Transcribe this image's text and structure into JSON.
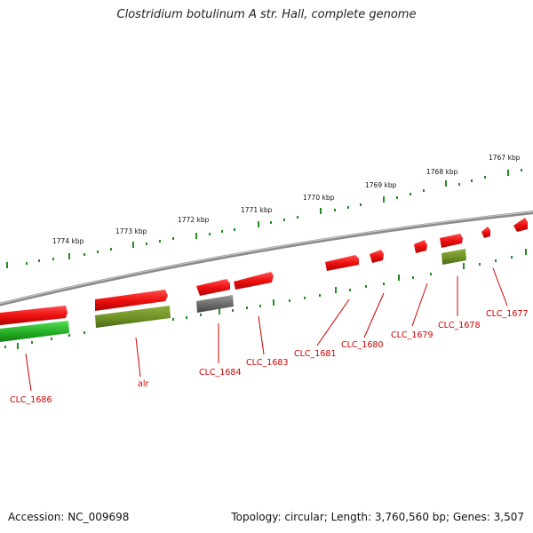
{
  "title": "Clostridium botulinum A str. Hall, complete genome",
  "accession": "Accession: NC_009698",
  "summary": "Topology: circular; Length: 3,760,560 bp; Genes: 3,507",
  "kbp_labels": [
    "1774 kbp",
    "1773 kbp",
    "1772 kbp",
    "1771 kbp",
    "1770 kbp",
    "1769 kbp",
    "1768 kbp",
    "1767 kbp"
  ],
  "gene_labels": [
    "CLC_1686",
    "alr",
    "CLC_1684",
    "CLC_1683",
    "CLC_1681",
    "CLC_1680",
    "CLC_1679",
    "CLC_1678",
    "CLC_1677"
  ],
  "colors": {
    "forward_gene": "#ee1111",
    "cog_olive": "#6b8e23",
    "cog_green": "#22aa22",
    "pseudo_grey": "#666666",
    "backbone": "#8a8a8a",
    "tick": "#228b22",
    "label": "#cc0000"
  }
}
